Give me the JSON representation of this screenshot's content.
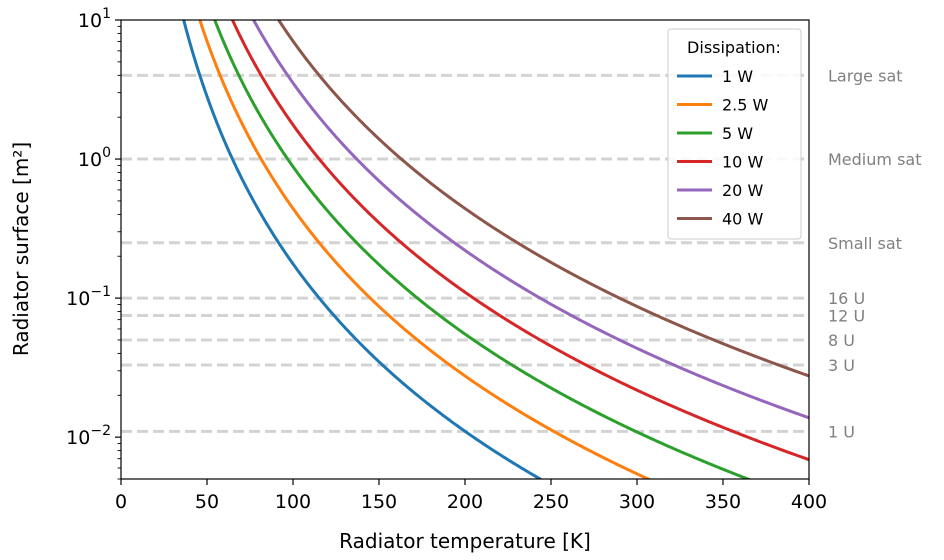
{
  "chart_data": {
    "type": "line",
    "title": "",
    "xlabel": "Radiator temperature [K]",
    "ylabel": "Radiator surface [m²]",
    "xlim": [
      0,
      400
    ],
    "ylim": [
      0.005,
      10
    ],
    "yscale": "log",
    "grid": false,
    "x_ticks": [
      0,
      50,
      100,
      150,
      200,
      250,
      300,
      350,
      400
    ],
    "y_ticks": [
      {
        "value": 0.01,
        "base": "10",
        "exp": "−2"
      },
      {
        "value": 0.1,
        "base": "10",
        "exp": "−1"
      },
      {
        "value": 1,
        "base": "10",
        "exp": "0"
      },
      {
        "value": 10,
        "base": "10",
        "exp": "1"
      }
    ],
    "legend": {
      "title": "Dissipation:",
      "placement": "top-right"
    },
    "series": [
      {
        "name": "1 W",
        "color": "#1f77b4",
        "dissipation_w": 1
      },
      {
        "name": "2.5 W",
        "color": "#ff7f0e",
        "dissipation_w": 2.5
      },
      {
        "name": "5 W",
        "color": "#2ca02c",
        "dissipation_w": 5
      },
      {
        "name": "10 W",
        "color": "#d62728",
        "dissipation_w": 10
      },
      {
        "name": "20 W",
        "color": "#9467bd",
        "dissipation_w": 20
      },
      {
        "name": "40 W",
        "color": "#8c564b",
        "dissipation_w": 40
      }
    ],
    "reference_lines": [
      {
        "label": "Large sat",
        "value": 4.0
      },
      {
        "label": "Medium sat",
        "value": 1.0
      },
      {
        "label": "Small sat",
        "value": 0.25
      },
      {
        "label": "16 U",
        "value": 0.1
      },
      {
        "label": "12 U",
        "value": 0.075
      },
      {
        "label": "8 U",
        "value": 0.05
      },
      {
        "label": "3 U",
        "value": 0.033
      },
      {
        "label": "1 U",
        "value": 0.011
      }
    ],
    "reference_line_color": "#d3d3d3",
    "label_color": "#808080"
  }
}
